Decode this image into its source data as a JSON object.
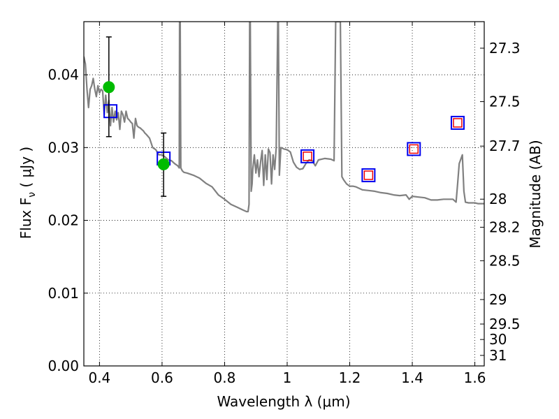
{
  "chart_data": {
    "type": "line",
    "title": "",
    "xlabel": "Wavelength  λ (μm)",
    "ylabel": "Flux  F",
    "ylabel_sub": "ν",
    "ylabel_unit": " ( μJy )",
    "y2label": "Magnitude (AB)",
    "xlim": [
      0.35,
      1.63
    ],
    "ylim": [
      0.0,
      0.0473
    ],
    "grid": true,
    "legend": "none",
    "x_ticks": [
      0.4,
      0.6,
      0.8,
      1.0,
      1.2,
      1.4,
      1.6
    ],
    "x_tick_labels": [
      "0.4",
      "0.6",
      "0.8",
      "1",
      "1.2",
      "1.4",
      "1.6"
    ],
    "y_ticks": [
      0.0,
      0.01,
      0.02,
      0.03,
      0.04
    ],
    "y_tick_labels": [
      "0.00",
      "0.01",
      "0.02",
      "0.03",
      "0.04"
    ],
    "y2_ticks": [
      27.3,
      27.5,
      27.7,
      28,
      28.2,
      28.5,
      29,
      29.5,
      30,
      31
    ],
    "y2_tick_labels": [
      "27.3",
      "27.5",
      "27.7",
      "28",
      "28.2",
      "28.5",
      "29",
      "29.5",
      "30",
      "31"
    ],
    "colors": {
      "model": "#808080",
      "observed": "#00bb00",
      "synthetic_outer": "#0000ee",
      "synthetic_inner": "#ee0000"
    },
    "series": [
      {
        "kind": "model",
        "x": [
          0.35,
          0.355,
          0.36,
          0.365,
          0.37,
          0.375,
          0.38,
          0.385,
          0.39,
          0.395,
          0.4,
          0.405,
          0.41,
          0.415,
          0.42,
          0.425,
          0.43,
          0.435,
          0.44,
          0.445,
          0.45,
          0.455,
          0.46,
          0.465,
          0.47,
          0.475,
          0.48,
          0.485,
          0.49,
          0.495,
          0.5,
          0.505,
          0.51,
          0.515,
          0.52,
          0.525,
          0.53,
          0.535,
          0.54,
          0.545,
          0.55,
          0.56,
          0.57,
          0.58,
          0.59,
          0.6,
          0.61,
          0.62,
          0.63,
          0.64,
          0.65,
          0.655,
          0.656,
          0.657,
          0.658,
          0.66,
          0.665,
          0.67,
          0.68,
          0.7,
          0.72,
          0.74,
          0.76,
          0.78,
          0.8,
          0.82,
          0.84,
          0.86,
          0.87,
          0.875,
          0.878,
          0.88,
          0.882,
          0.885,
          0.888,
          0.89,
          0.895,
          0.9,
          0.905,
          0.91,
          0.915,
          0.92,
          0.925,
          0.93,
          0.935,
          0.94,
          0.945,
          0.95,
          0.955,
          0.96,
          0.965,
          0.97,
          0.972,
          0.975,
          0.98,
          0.99,
          1.0,
          1.01,
          1.02,
          1.03,
          1.04,
          1.05,
          1.06,
          1.07,
          1.08,
          1.09,
          1.1,
          1.12,
          1.14,
          1.15,
          1.155,
          1.16,
          1.165,
          1.17,
          1.175,
          1.18,
          1.19,
          1.2,
          1.21,
          1.22,
          1.24,
          1.26,
          1.28,
          1.3,
          1.32,
          1.34,
          1.36,
          1.38,
          1.39,
          1.4,
          1.42,
          1.44,
          1.46,
          1.48,
          1.5,
          1.52,
          1.53,
          1.54,
          1.545,
          1.55,
          1.56,
          1.565,
          1.57,
          1.58,
          1.59,
          1.6,
          1.61,
          1.62,
          1.63
        ],
        "y": [
          0.0425,
          0.0415,
          0.038,
          0.0355,
          0.038,
          0.0385,
          0.0395,
          0.038,
          0.037,
          0.0385,
          0.0375,
          0.038,
          0.0378,
          0.0345,
          0.0372,
          0.0348,
          0.0365,
          0.033,
          0.0355,
          0.0335,
          0.035,
          0.0338,
          0.0348,
          0.0325,
          0.035,
          0.0345,
          0.0335,
          0.035,
          0.034,
          0.0338,
          0.0335,
          0.0333,
          0.0313,
          0.034,
          0.033,
          0.0328,
          0.0327,
          0.0325,
          0.0323,
          0.032,
          0.0318,
          0.0313,
          0.03,
          0.0297,
          0.029,
          0.029,
          0.0287,
          0.0283,
          0.0282,
          0.0278,
          0.0275,
          0.0272,
          0.0473,
          0.0473,
          0.0473,
          0.0272,
          0.0268,
          0.0266,
          0.0265,
          0.0262,
          0.0258,
          0.0251,
          0.0246,
          0.0235,
          0.0229,
          0.0222,
          0.0218,
          0.0214,
          0.0212,
          0.0212,
          0.0222,
          0.0473,
          0.0473,
          0.024,
          0.025,
          0.027,
          0.029,
          0.0265,
          0.0283,
          0.026,
          0.028,
          0.0296,
          0.0248,
          0.029,
          0.0256,
          0.0298,
          0.0293,
          0.025,
          0.029,
          0.027,
          0.03,
          0.0473,
          0.0473,
          0.0262,
          0.03,
          0.0298,
          0.0297,
          0.0294,
          0.028,
          0.0273,
          0.027,
          0.0271,
          0.0278,
          0.0283,
          0.0282,
          0.0275,
          0.0283,
          0.0285,
          0.0284,
          0.0282,
          0.0473,
          0.0473,
          0.0473,
          0.0473,
          0.026,
          0.0256,
          0.025,
          0.0247,
          0.0247,
          0.0246,
          0.0242,
          0.0241,
          0.024,
          0.0238,
          0.0237,
          0.0235,
          0.0234,
          0.0235,
          0.0229,
          0.0233,
          0.0232,
          0.0231,
          0.0228,
          0.0228,
          0.0229,
          0.0229,
          0.0229,
          0.0225,
          0.025,
          0.0278,
          0.029,
          0.024,
          0.0225,
          0.0224,
          0.0224,
          0.0224,
          0.0223,
          0.0223,
          0.0223
        ]
      },
      {
        "kind": "synthetic",
        "name": "",
        "x": [
          0.435,
          0.605,
          1.065,
          1.26,
          1.405,
          1.545
        ],
        "y": [
          0.035,
          0.0285,
          0.0288,
          0.0262,
          0.0298,
          0.0334
        ],
        "inner": [
          false,
          false,
          true,
          true,
          true,
          true
        ]
      },
      {
        "kind": "observed",
        "name": "",
        "x": [
          0.43,
          0.605
        ],
        "y": [
          0.0383,
          0.0277
        ],
        "yerr_low": [
          0.0068,
          0.0044
        ],
        "yerr_high": [
          0.0069,
          0.0043
        ]
      }
    ]
  }
}
